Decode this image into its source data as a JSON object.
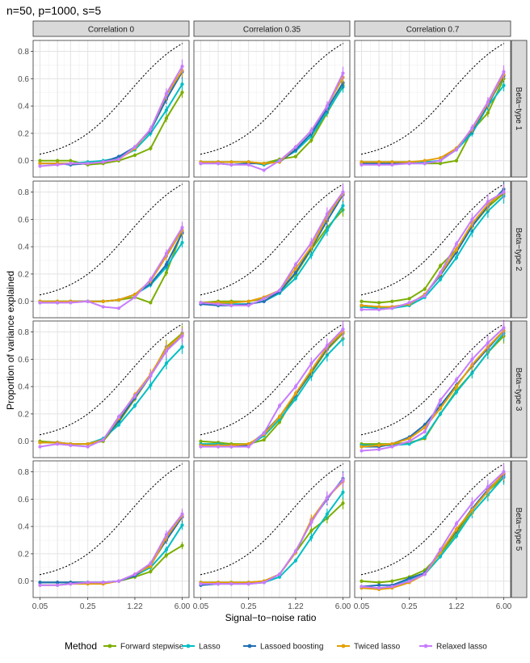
{
  "title": "n=50, p=1000, s=5",
  "xlabel": "Signal−to−noise ratio",
  "ylabel": "Proportion of variance explained",
  "legend_title": "Method",
  "col_strips": [
    "Correlation 0",
    "Correlation 0.35",
    "Correlation 0.7"
  ],
  "row_strips": [
    "Beta−type 1",
    "Beta−type 2",
    "Beta−type 3",
    "Beta−type 5"
  ],
  "methods": [
    {
      "name": "Forward stepwise",
      "color": "#7CAE00"
    },
    {
      "name": "Lasso",
      "color": "#00BFC4"
    },
    {
      "name": "Lassoed boosting",
      "color": "#1F6FB4"
    },
    {
      "name": "Twiced lasso",
      "color": "#E69F00"
    },
    {
      "name": "Relaxed lasso",
      "color": "#C77CFF"
    }
  ],
  "chart_data": {
    "type": "line",
    "x": [
      0.05,
      0.09,
      0.14,
      0.25,
      0.42,
      0.71,
      1.22,
      2.07,
      3.52,
      6.0
    ],
    "x_scale": "log",
    "x_tick_labels": [
      "0.05",
      "0.25",
      "1.22",
      "6.00"
    ],
    "x_tick_values": [
      0.05,
      0.25,
      1.22,
      6.0
    ],
    "ylim": [
      -0.12,
      0.88
    ],
    "y_ticks": [
      0.0,
      0.2,
      0.4,
      0.6,
      0.8
    ],
    "y_tick_labels": [
      "0.0",
      "0.2",
      "0.4",
      "0.6",
      "0.8"
    ],
    "oracle_curve": "dotted black line: SNR/(1+SNR)",
    "panels": [
      [
        {
          "series": [
            [
              0.0,
              0.0,
              0.0,
              -0.03,
              -0.02,
              0.0,
              0.04,
              0.09,
              0.31,
              0.5
            ],
            [
              -0.02,
              -0.02,
              -0.02,
              -0.01,
              0.0,
              0.02,
              0.08,
              0.2,
              0.37,
              0.56
            ],
            [
              -0.02,
              -0.02,
              -0.03,
              -0.02,
              -0.01,
              0.03,
              0.1,
              0.22,
              0.45,
              0.65
            ],
            [
              -0.02,
              -0.02,
              -0.02,
              -0.02,
              -0.01,
              0.01,
              0.09,
              0.23,
              0.48,
              0.66
            ],
            [
              -0.04,
              -0.03,
              -0.02,
              -0.02,
              -0.01,
              0.01,
              0.1,
              0.23,
              0.49,
              0.69
            ]
          ]
        },
        {
          "series": [
            [
              -0.01,
              -0.01,
              -0.01,
              -0.01,
              -0.02,
              0.01,
              0.03,
              0.15,
              0.35,
              0.55
            ],
            [
              -0.01,
              -0.01,
              -0.01,
              -0.01,
              -0.03,
              0.0,
              0.07,
              0.18,
              0.36,
              0.54
            ],
            [
              -0.02,
              -0.02,
              -0.03,
              -0.02,
              -0.02,
              -0.01,
              0.08,
              0.2,
              0.38,
              0.57
            ],
            [
              -0.01,
              -0.01,
              -0.01,
              -0.01,
              -0.02,
              -0.01,
              0.1,
              0.22,
              0.4,
              0.61
            ],
            [
              -0.02,
              -0.02,
              -0.03,
              -0.03,
              -0.07,
              0.0,
              0.1,
              0.22,
              0.4,
              0.64
            ]
          ]
        },
        {
          "series": [
            [
              -0.01,
              -0.01,
              -0.01,
              -0.01,
              -0.02,
              -0.02,
              0.0,
              0.22,
              0.35,
              0.6
            ],
            [
              -0.01,
              -0.01,
              -0.01,
              -0.01,
              -0.01,
              0.0,
              0.08,
              0.2,
              0.4,
              0.55
            ],
            [
              -0.02,
              -0.02,
              -0.02,
              -0.02,
              -0.02,
              0.0,
              0.09,
              0.22,
              0.41,
              0.62
            ],
            [
              -0.01,
              -0.01,
              -0.01,
              -0.01,
              0.0,
              0.02,
              0.09,
              0.23,
              0.42,
              0.63
            ],
            [
              -0.03,
              -0.03,
              -0.03,
              -0.02,
              -0.02,
              0.0,
              0.08,
              0.24,
              0.43,
              0.65
            ]
          ]
        }
      ],
      [
        {
          "series": [
            [
              0.0,
              0.0,
              0.0,
              0.0,
              0.0,
              0.01,
              0.03,
              -0.01,
              0.21,
              0.51
            ],
            [
              0.0,
              0.0,
              0.0,
              0.0,
              0.0,
              0.01,
              0.05,
              0.12,
              0.25,
              0.43
            ],
            [
              -0.01,
              -0.01,
              0.0,
              0.0,
              0.0,
              0.01,
              0.05,
              0.13,
              0.27,
              0.5
            ],
            [
              0.0,
              0.0,
              0.0,
              0.0,
              0.0,
              0.01,
              0.05,
              0.15,
              0.33,
              0.52
            ],
            [
              -0.01,
              -0.01,
              -0.01,
              0.0,
              -0.04,
              -0.05,
              0.03,
              0.16,
              0.35,
              0.54
            ]
          ]
        },
        {
          "series": [
            [
              -0.01,
              0.0,
              0.0,
              0.0,
              0.02,
              0.07,
              0.2,
              0.38,
              0.54,
              0.67
            ],
            [
              -0.01,
              -0.02,
              -0.02,
              -0.02,
              0.0,
              0.06,
              0.17,
              0.34,
              0.52,
              0.7
            ],
            [
              -0.02,
              -0.03,
              -0.03,
              -0.02,
              0.0,
              0.07,
              0.21,
              0.39,
              0.59,
              0.78
            ],
            [
              -0.01,
              -0.01,
              -0.01,
              0.0,
              0.03,
              0.08,
              0.24,
              0.4,
              0.62,
              0.79
            ],
            [
              -0.01,
              -0.02,
              -0.03,
              -0.03,
              0.02,
              0.08,
              0.27,
              0.43,
              0.64,
              0.8
            ]
          ]
        },
        {
          "series": [
            [
              0.0,
              -0.01,
              0.0,
              0.02,
              0.09,
              0.26,
              0.38,
              0.55,
              0.69,
              0.79
            ],
            [
              -0.04,
              -0.05,
              -0.05,
              -0.03,
              0.03,
              0.16,
              0.32,
              0.51,
              0.66,
              0.77
            ],
            [
              -0.03,
              -0.04,
              -0.04,
              -0.02,
              0.05,
              0.19,
              0.36,
              0.55,
              0.7,
              0.82
            ],
            [
              -0.03,
              -0.04,
              -0.04,
              -0.02,
              0.05,
              0.2,
              0.38,
              0.57,
              0.71,
              0.8
            ],
            [
              -0.06,
              -0.06,
              -0.05,
              -0.01,
              0.04,
              0.21,
              0.42,
              0.6,
              0.73,
              0.8
            ]
          ]
        }
      ],
      [
        {
          "series": [
            [
              0.0,
              -0.01,
              -0.02,
              -0.02,
              0.0,
              0.14,
              0.31,
              0.48,
              0.69,
              0.79
            ],
            [
              -0.01,
              -0.01,
              -0.02,
              -0.02,
              0.02,
              0.12,
              0.26,
              0.41,
              0.57,
              0.69
            ],
            [
              -0.01,
              -0.01,
              -0.02,
              -0.02,
              0.01,
              0.15,
              0.32,
              0.48,
              0.66,
              0.78
            ],
            [
              -0.01,
              -0.01,
              -0.02,
              -0.02,
              0.01,
              0.17,
              0.34,
              0.49,
              0.68,
              0.78
            ],
            [
              -0.04,
              -0.02,
              -0.03,
              -0.04,
              0.01,
              0.18,
              0.33,
              0.48,
              0.66,
              0.77
            ]
          ]
        },
        {
          "series": [
            [
              0.0,
              -0.01,
              -0.02,
              -0.02,
              0.01,
              0.14,
              0.34,
              0.5,
              0.67,
              0.79
            ],
            [
              -0.02,
              -0.02,
              -0.03,
              -0.03,
              0.04,
              0.16,
              0.31,
              0.48,
              0.63,
              0.75
            ],
            [
              -0.03,
              -0.03,
              -0.04,
              -0.03,
              0.06,
              0.18,
              0.34,
              0.51,
              0.68,
              0.8
            ],
            [
              -0.03,
              -0.03,
              -0.03,
              -0.02,
              0.05,
              0.18,
              0.35,
              0.52,
              0.69,
              0.8
            ],
            [
              -0.04,
              -0.04,
              -0.04,
              -0.04,
              0.06,
              0.26,
              0.4,
              0.57,
              0.7,
              0.82
            ]
          ]
        },
        {
          "series": [
            [
              -0.02,
              -0.02,
              -0.02,
              -0.01,
              0.02,
              0.2,
              0.37,
              0.5,
              0.65,
              0.77
            ],
            [
              -0.03,
              -0.03,
              -0.03,
              -0.02,
              0.03,
              0.2,
              0.36,
              0.5,
              0.65,
              0.79
            ],
            [
              -0.04,
              -0.04,
              -0.02,
              0.03,
              0.12,
              0.26,
              0.41,
              0.55,
              0.68,
              0.81
            ],
            [
              -0.04,
              -0.03,
              -0.02,
              0.02,
              0.1,
              0.24,
              0.4,
              0.56,
              0.69,
              0.81
            ],
            [
              -0.07,
              -0.06,
              -0.04,
              0.0,
              0.07,
              0.3,
              0.45,
              0.6,
              0.72,
              0.83
            ]
          ]
        }
      ],
      [
        {
          "series": [
            [
              -0.01,
              -0.01,
              -0.01,
              -0.01,
              -0.01,
              0.0,
              0.03,
              0.07,
              0.19,
              0.26
            ],
            [
              -0.01,
              -0.01,
              -0.01,
              -0.01,
              -0.01,
              0.0,
              0.04,
              0.1,
              0.23,
              0.41
            ],
            [
              -0.01,
              -0.01,
              -0.01,
              -0.01,
              -0.01,
              0.0,
              0.04,
              0.12,
              0.3,
              0.47
            ],
            [
              -0.03,
              -0.03,
              -0.02,
              -0.02,
              -0.02,
              0.0,
              0.05,
              0.11,
              0.32,
              0.48
            ],
            [
              -0.03,
              -0.03,
              -0.02,
              -0.01,
              -0.01,
              0.0,
              0.05,
              0.13,
              0.34,
              0.49
            ]
          ]
        },
        {
          "series": [
            [
              -0.01,
              -0.01,
              -0.01,
              -0.01,
              0.0,
              0.05,
              0.21,
              0.37,
              0.46,
              0.57
            ],
            [
              -0.01,
              -0.01,
              -0.01,
              -0.01,
              -0.01,
              0.03,
              0.15,
              0.32,
              0.49,
              0.65
            ],
            [
              -0.03,
              -0.02,
              -0.02,
              -0.02,
              -0.01,
              0.05,
              0.21,
              0.44,
              0.6,
              0.75
            ],
            [
              -0.01,
              -0.01,
              -0.01,
              -0.01,
              0.0,
              0.05,
              0.21,
              0.45,
              0.61,
              0.73
            ],
            [
              -0.02,
              -0.02,
              -0.02,
              -0.02,
              -0.01,
              0.05,
              0.22,
              0.43,
              0.61,
              0.74
            ]
          ]
        },
        {
          "series": [
            [
              0.0,
              -0.01,
              0.0,
              0.03,
              0.08,
              0.2,
              0.35,
              0.52,
              0.66,
              0.76
            ],
            [
              -0.05,
              -0.05,
              -0.04,
              0.01,
              0.05,
              0.18,
              0.33,
              0.5,
              0.63,
              0.76
            ],
            [
              -0.04,
              -0.03,
              -0.03,
              0.02,
              0.06,
              0.21,
              0.37,
              0.53,
              0.67,
              0.78
            ],
            [
              -0.05,
              -0.06,
              -0.05,
              -0.01,
              0.05,
              0.21,
              0.38,
              0.52,
              0.66,
              0.79
            ],
            [
              -0.04,
              -0.05,
              -0.04,
              0.0,
              0.05,
              0.23,
              0.42,
              0.57,
              0.69,
              0.8
            ]
          ]
        }
      ]
    ]
  }
}
